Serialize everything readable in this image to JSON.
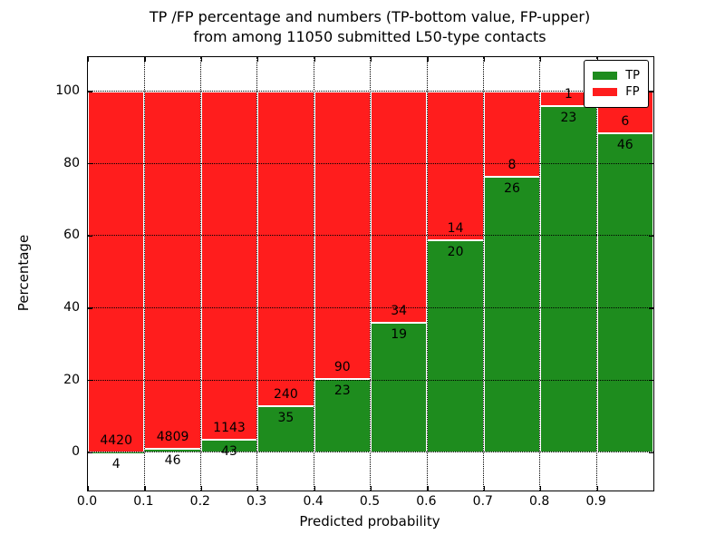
{
  "figure": {
    "title_line1": "TP /FP percentage and numbers (TP-bottom value, FP-upper)",
    "title_line2": "from among 11050 submitted L50-type contacts",
    "xlabel": "Predicted probability",
    "ylabel": "Percentage"
  },
  "legend": {
    "items": [
      {
        "label": "TP",
        "color": "#1e8c1e"
      },
      {
        "label": "FP",
        "color": "#ff1d1d"
      }
    ]
  },
  "chart_data": {
    "type": "bar",
    "stacked": true,
    "normalized_to_percent": true,
    "title": "TP /FP percentage and numbers (TP-bottom value, FP-upper) from among 11050 submitted L50-type contacts",
    "xlabel": "Predicted probability",
    "ylabel": "Percentage",
    "total_contacts": 11050,
    "bins": [
      "0.0-0.1",
      "0.1-0.2",
      "0.2-0.3",
      "0.3-0.4",
      "0.4-0.5",
      "0.5-0.6",
      "0.6-0.7",
      "0.7-0.8",
      "0.8-0.9",
      "0.9-1.0"
    ],
    "x_tick_labels": [
      "0.0",
      "0.1",
      "0.2",
      "0.3",
      "0.4",
      "0.5",
      "0.6",
      "0.7",
      "0.8",
      "0.9"
    ],
    "y_ticks": [
      0,
      20,
      40,
      60,
      80,
      100
    ],
    "xlim": [
      0.0,
      1.0
    ],
    "ylim": [
      -10.5,
      109.5
    ],
    "grid": "dotted-black-on",
    "legend_position": "upper right",
    "bar_edge_color": "#ffffff",
    "series": [
      {
        "name": "TP",
        "color": "#1e8c1e",
        "counts": [
          4,
          46,
          43,
          35,
          23,
          19,
          20,
          26,
          23,
          46
        ]
      },
      {
        "name": "FP",
        "color": "#ff1d1d",
        "counts": [
          4420,
          4809,
          1143,
          240,
          90,
          34,
          14,
          8,
          1,
          6
        ]
      }
    ],
    "tp_percent_of_bin": [
      0.09,
      0.95,
      3.63,
      12.73,
      20.35,
      35.85,
      58.82,
      76.47,
      95.83,
      88.46
    ]
  }
}
